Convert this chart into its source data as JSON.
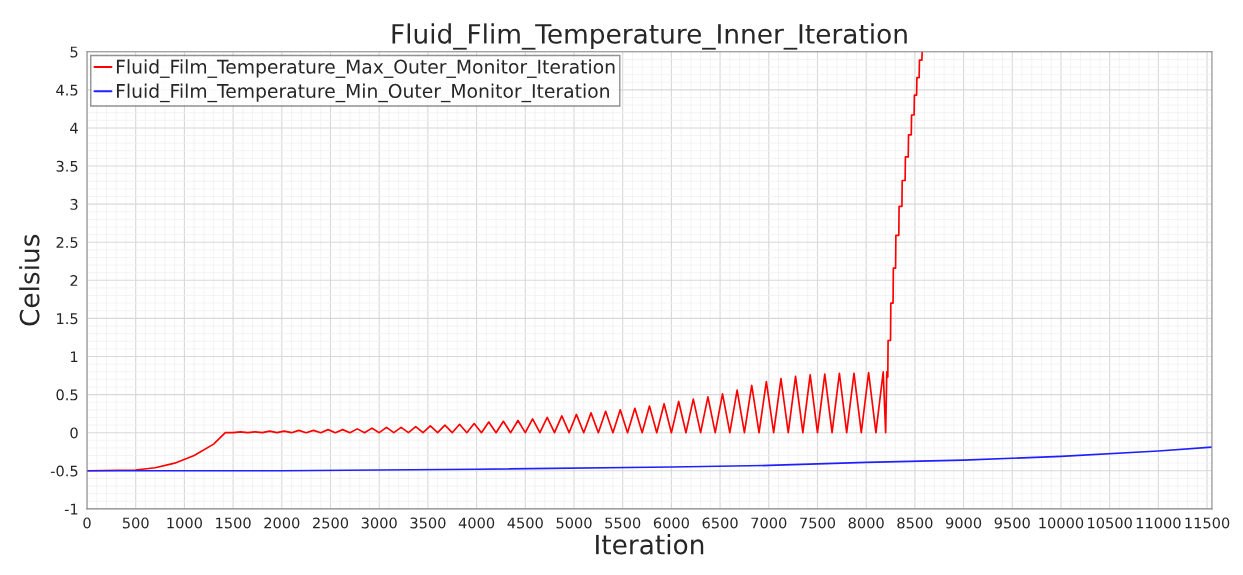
{
  "chart_data": {
    "type": "line",
    "title": "Fluid_Flim_Temperature_Inner_Iteration",
    "xlabel": "Iteration",
    "ylabel": "Celsius",
    "xlim": [
      0,
      11550
    ],
    "xticks": [
      0,
      500,
      1000,
      1500,
      2000,
      2500,
      3000,
      3500,
      4000,
      4500,
      5000,
      5500,
      6000,
      6500,
      7000,
      7500,
      8000,
      8500,
      9000,
      9500,
      10000,
      10500,
      11000,
      11500
    ],
    "ylim": [
      -1,
      5
    ],
    "yticks": [
      -1,
      -0.5,
      0,
      0.5,
      1,
      1.5,
      2,
      2.5,
      3,
      3.5,
      4,
      4.5,
      5
    ],
    "grid": true,
    "legend": "top left",
    "marker": "none",
    "line_style": "solid",
    "series": [
      {
        "name": "Fluid_Film_Temperature_Max_Outer_Monitor_Iteration",
        "color": "#ff0000",
        "x": [
          0,
          500,
          700,
          900,
          1100,
          1300,
          1420,
          1500,
          1575,
          1650,
          1725,
          1800,
          1875,
          1950,
          2025,
          2100,
          2175,
          2250,
          2325,
          2400,
          2475,
          2550,
          2625,
          2700,
          2775,
          2850,
          2925,
          3000,
          3075,
          3150,
          3225,
          3300,
          3375,
          3450,
          3525,
          3600,
          3675,
          3750,
          3825,
          3900,
          3975,
          4050,
          4125,
          4200,
          4275,
          4350,
          4425,
          4500,
          4575,
          4650,
          4725,
          4800,
          4875,
          4950,
          5025,
          5100,
          5175,
          5250,
          5325,
          5400,
          5475,
          5550,
          5625,
          5700,
          5775,
          5850,
          5925,
          6000,
          6075,
          6150,
          6225,
          6300,
          6375,
          6450,
          6525,
          6600,
          6675,
          6750,
          6825,
          6900,
          6975,
          7050,
          7125,
          7200,
          7275,
          7350,
          7425,
          7500,
          7575,
          7650,
          7725,
          7800,
          7875,
          7950,
          8025,
          8100,
          8175,
          8200,
          8212,
          8222,
          8225,
          8250,
          8253,
          8276,
          8279,
          8302,
          8305,
          8335,
          8338,
          8367,
          8370,
          8400,
          8403,
          8432,
          8435,
          8463,
          8466,
          8492,
          8495,
          8518,
          8521,
          8544,
          8547,
          8572,
          8575
        ],
        "values": [
          -0.5,
          -0.49,
          -0.46,
          -0.4,
          -0.3,
          -0.15,
          0,
          0,
          0.01,
          0,
          0.01,
          0,
          0.02,
          0,
          0.02,
          0,
          0.03,
          0,
          0.03,
          0,
          0.04,
          0,
          0.04,
          0,
          0.05,
          0,
          0.06,
          0,
          0.07,
          0,
          0.07,
          0,
          0.08,
          0,
          0.09,
          0,
          0.1,
          0,
          0.11,
          0,
          0.12,
          0,
          0.14,
          0,
          0.15,
          0,
          0.16,
          0,
          0.18,
          0,
          0.2,
          0,
          0.22,
          0,
          0.24,
          0,
          0.26,
          0,
          0.28,
          0,
          0.3,
          0,
          0.32,
          0,
          0.35,
          0,
          0.38,
          0,
          0.41,
          0,
          0.44,
          0,
          0.47,
          0,
          0.51,
          0,
          0.56,
          0,
          0.62,
          0,
          0.67,
          0,
          0.71,
          0,
          0.74,
          0,
          0.76,
          0,
          0.77,
          0,
          0.78,
          0,
          0.78,
          0,
          0.79,
          0,
          0.8,
          0,
          0.8,
          0.73,
          1.21,
          1.21,
          1.7,
          1.7,
          2.16,
          2.16,
          2.59,
          2.59,
          2.97,
          2.97,
          3.31,
          3.31,
          3.62,
          3.62,
          3.91,
          3.91,
          4.17,
          4.17,
          4.43,
          4.43,
          4.66,
          4.66,
          4.89,
          4.89,
          5
        ]
      },
      {
        "name": "Fluid_Film_Temperature_Min_Outer_Monitor_Iteration",
        "color": "#2020ff",
        "x": [
          0,
          2000,
          4000,
          6000,
          7000,
          8000,
          9000,
          10000,
          11000,
          11550
        ],
        "values": [
          -0.5,
          -0.5,
          -0.48,
          -0.45,
          -0.43,
          -0.39,
          -0.36,
          -0.31,
          -0.24,
          -0.19
        ]
      }
    ]
  }
}
